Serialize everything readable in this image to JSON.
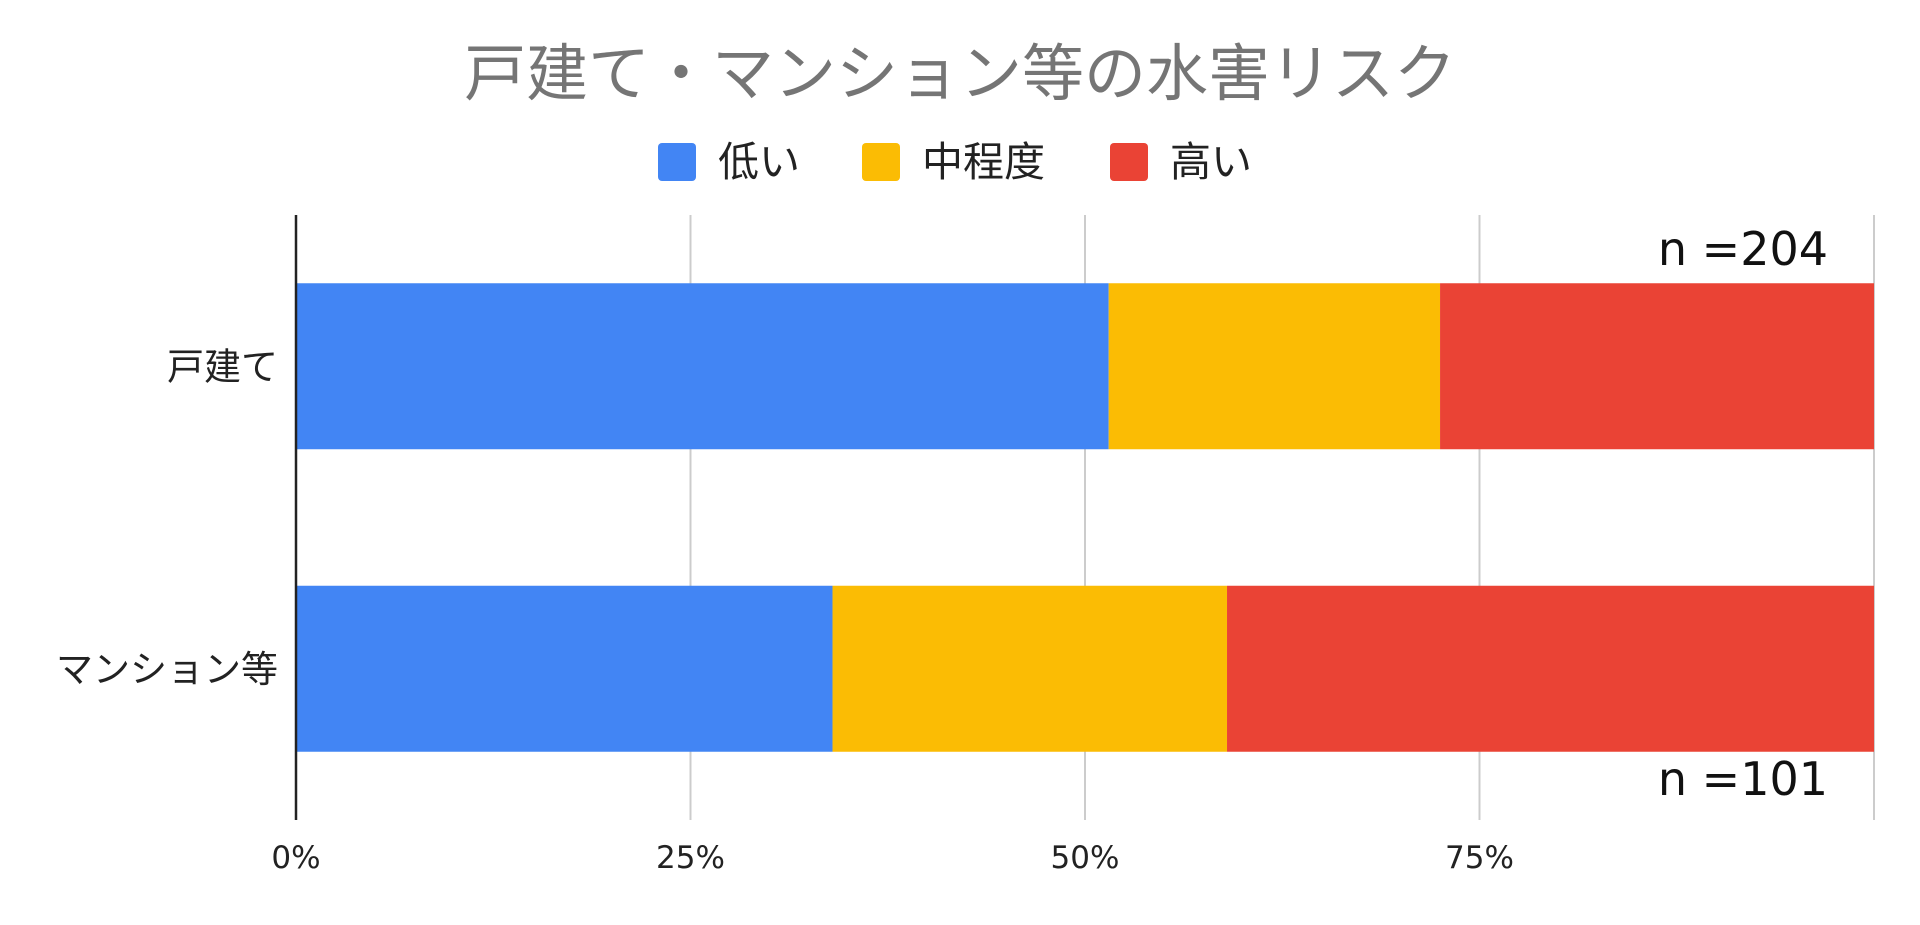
{
  "chart_data": {
    "type": "bar",
    "orientation": "horizontal",
    "stacked": "percent",
    "title": "戸建て・マンション等の水害リスク",
    "categories": [
      "戸建て",
      "マンション等"
    ],
    "series": [
      {
        "name": "低い",
        "color": "#4285F4",
        "values": [
          51.5,
          34
        ]
      },
      {
        "name": "中程度",
        "color": "#FBBC04",
        "values": [
          21,
          25
        ]
      },
      {
        "name": "高い",
        "color": "#EA4335",
        "values": [
          27.5,
          41
        ]
      }
    ],
    "xlim": [
      0,
      100
    ],
    "xticks": [
      "0%",
      "25%",
      "50%",
      "75%"
    ],
    "grid": true,
    "legend_position": "top",
    "annotations": [
      "n =204",
      "n =101"
    ]
  }
}
